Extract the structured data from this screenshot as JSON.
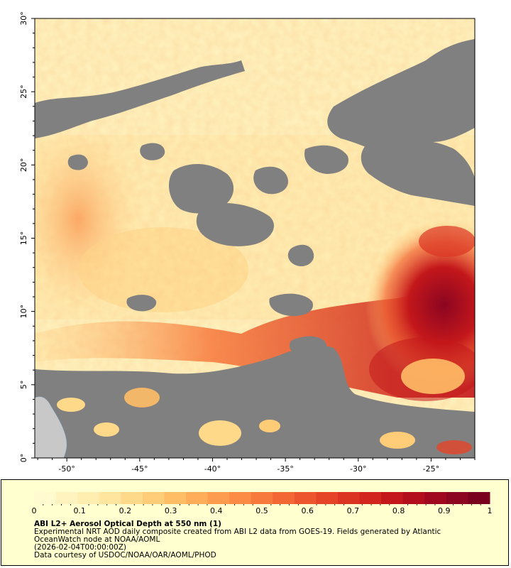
{
  "map": {
    "y_axis": {
      "unit": "°",
      "ticks": [
        "0",
        "5",
        "10",
        "15",
        "20",
        "25",
        "30"
      ]
    },
    "x_axis": {
      "unit": "°",
      "ticks": [
        "-50",
        "-45",
        "-40",
        "-35",
        "-30",
        "-25"
      ]
    },
    "colors": {
      "no_data": "#808080",
      "land": "#c8c8c8",
      "background": "#fff7c4"
    }
  },
  "colorbar": {
    "ticks": [
      "0",
      "0.1",
      "0.2",
      "0.3",
      "0.4",
      "0.5",
      "0.6",
      "0.7",
      "0.8",
      "0.9",
      "1"
    ],
    "colors": [
      "#fffacf",
      "#fff4c0",
      "#ffeeb0",
      "#ffe59e",
      "#ffd98a",
      "#ffcc77",
      "#ffbd66",
      "#ffad59",
      "#fd9c4e",
      "#fb8b45",
      "#f7793c",
      "#f26734",
      "#ec552d",
      "#e54427",
      "#dc3422",
      "#d1251e",
      "#c3171b",
      "#b30e1c",
      "#a0081f",
      "#8c0521",
      "#7a0020"
    ]
  },
  "caption": {
    "title": "ABI L2+ Aerosol Optical Depth at 550 nm (1)",
    "line1": "Experimental NRT AOD daily composite created from ABI L2 data from GOES-19. Fields generated by Atlantic OceanWatch node at NOAA/AOML",
    "line2": "(2026-02-04T00:00:00Z)",
    "line3": "Data courtesy of USDOC/NOAA/OAR/AOML/PHOD"
  }
}
